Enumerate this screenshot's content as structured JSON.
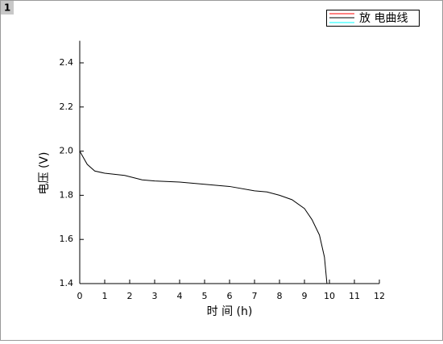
{
  "chart_data": {
    "type": "line",
    "layer_label": "1",
    "x": [
      0,
      0.3,
      0.6,
      1,
      1.8,
      2.5,
      3,
      4,
      5,
      6,
      7,
      7.5,
      8,
      8.5,
      9,
      9.3,
      9.6,
      9.8,
      9.9
    ],
    "series": [
      {
        "name": "放 电曲线",
        "color": "#000000",
        "values": [
          2.0,
          1.94,
          1.91,
          1.9,
          1.89,
          1.87,
          1.865,
          1.86,
          1.85,
          1.84,
          1.82,
          1.815,
          1.8,
          1.78,
          1.74,
          1.69,
          1.62,
          1.52,
          1.4
        ]
      }
    ],
    "x_label": "时 间 (h)",
    "y_label": "电压 (V)",
    "xlim": [
      0,
      12
    ],
    "ylim": [
      1.4,
      2.5
    ],
    "xticks": [
      0,
      1,
      2,
      3,
      4,
      5,
      6,
      7,
      8,
      9,
      10,
      11,
      12
    ],
    "yticks": [
      1.4,
      1.6,
      1.8,
      {
        "value": 2,
        "label": "2.0"
      },
      2.2,
      2.4
    ]
  }
}
